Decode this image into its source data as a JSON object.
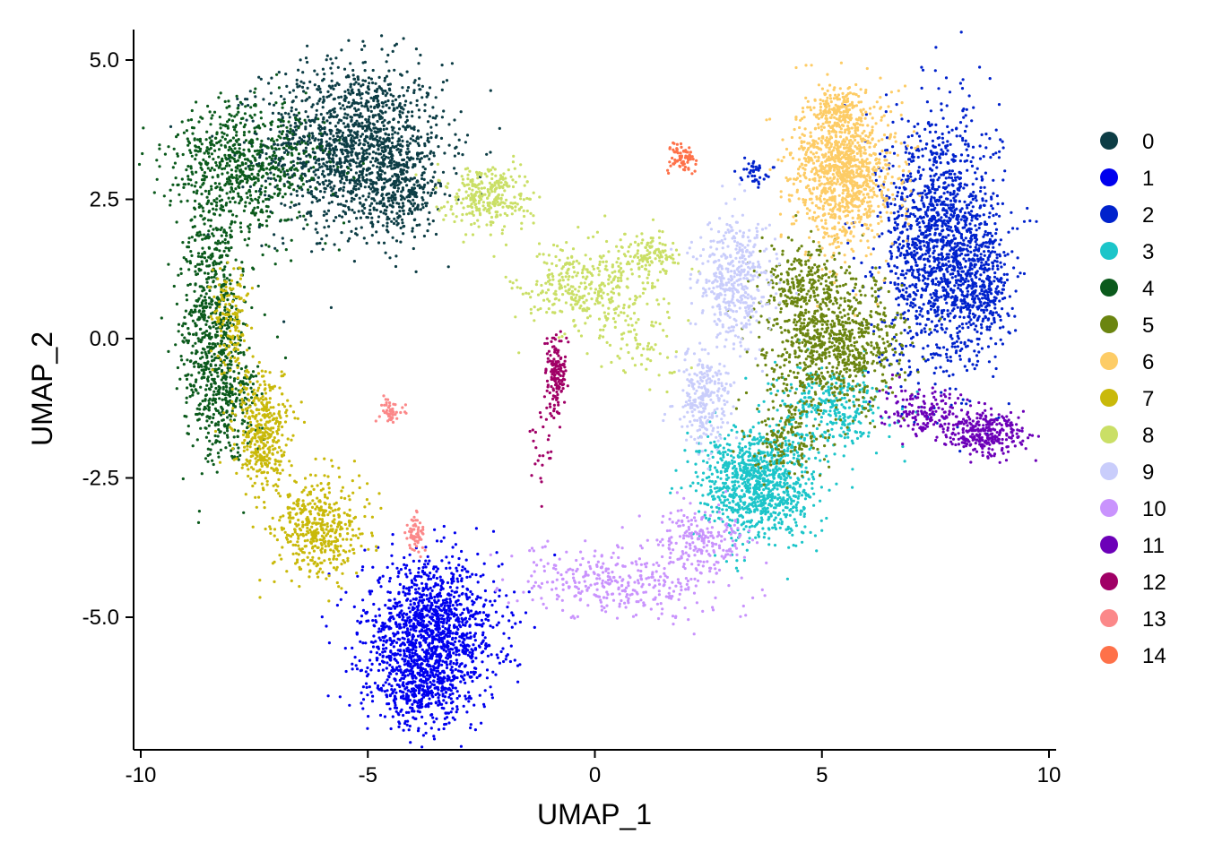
{
  "chart_data": {
    "type": "scatter",
    "title": "",
    "xlabel": "UMAP_1",
    "ylabel": "UMAP_2",
    "xlim": [
      -10,
      10
    ],
    "ylim": [
      -7.4,
      5.6
    ],
    "x_ticks": [
      -10,
      -5,
      0,
      5,
      10
    ],
    "x_tick_labels": [
      "-10",
      "-5",
      "0",
      "5",
      "10"
    ],
    "y_ticks": [
      -5,
      -2.5,
      0,
      2.5,
      5
    ],
    "y_tick_labels": [
      "-5.0",
      "-2.5",
      "0.0",
      "2.5",
      "5.0"
    ],
    "grid": false,
    "legend_position": "right",
    "point_size": "small",
    "series": [
      {
        "name": "0",
        "color": "#0d3d45",
        "clusters": [
          {
            "cx": -5.3,
            "cy": 3.45,
            "sx": 1.0,
            "sy": 0.75,
            "n": 1500
          },
          {
            "cx": -4.2,
            "cy": 2.6,
            "sx": 0.35,
            "sy": 0.4,
            "n": 200
          }
        ]
      },
      {
        "name": "1",
        "color": "#0000ee",
        "clusters": [
          {
            "cx": -3.6,
            "cy": -5.3,
            "sx": 0.75,
            "sy": 0.65,
            "n": 1400
          },
          {
            "cx": -3.9,
            "cy": -6.3,
            "sx": 0.45,
            "sy": 0.3,
            "n": 300
          }
        ]
      },
      {
        "name": "2",
        "color": "#0022cc",
        "clusters": [
          {
            "cx": 7.6,
            "cy": 1.7,
            "sx": 0.65,
            "sy": 1.15,
            "n": 1500
          },
          {
            "cx": 8.5,
            "cy": 1.0,
            "sx": 0.35,
            "sy": 0.6,
            "n": 300
          },
          {
            "cx": 3.5,
            "cy": 3.0,
            "sx": 0.15,
            "sy": 0.1,
            "n": 40
          }
        ]
      },
      {
        "name": "3",
        "color": "#1cc5c9",
        "clusters": [
          {
            "cx": 3.6,
            "cy": -2.6,
            "sx": 0.65,
            "sy": 0.5,
            "n": 1000
          },
          {
            "cx": 5.2,
            "cy": -1.2,
            "sx": 0.6,
            "sy": 0.35,
            "n": 300
          }
        ]
      },
      {
        "name": "4",
        "color": "#0b5a1c",
        "clusters": [
          {
            "cx": -8.4,
            "cy": 0.3,
            "sx": 0.35,
            "sy": 1.1,
            "n": 700
          },
          {
            "cx": -7.7,
            "cy": 3.1,
            "sx": 0.85,
            "sy": 0.6,
            "n": 700
          },
          {
            "cx": -8.1,
            "cy": -1.2,
            "sx": 0.4,
            "sy": 0.5,
            "n": 200
          }
        ]
      },
      {
        "name": "5",
        "color": "#6b8510",
        "clusters": [
          {
            "cx": 5.3,
            "cy": -0.1,
            "sx": 0.75,
            "sy": 0.6,
            "n": 900
          },
          {
            "cx": 4.5,
            "cy": 1.0,
            "sx": 0.4,
            "sy": 0.35,
            "n": 200
          },
          {
            "cx": 4.3,
            "cy": -1.8,
            "sx": 0.4,
            "sy": 0.35,
            "n": 150
          }
        ]
      },
      {
        "name": "6",
        "color": "#fdcc66",
        "clusters": [
          {
            "cx": 5.5,
            "cy": 3.0,
            "sx": 0.55,
            "sy": 0.65,
            "n": 1100
          },
          {
            "cx": 5.3,
            "cy": 4.1,
            "sx": 0.3,
            "sy": 0.2,
            "n": 150
          }
        ]
      },
      {
        "name": "7",
        "color": "#c9b90a",
        "clusters": [
          {
            "cx": -7.3,
            "cy": -1.7,
            "sx": 0.3,
            "sy": 0.5,
            "n": 400
          },
          {
            "cx": -6.1,
            "cy": -3.4,
            "sx": 0.5,
            "sy": 0.45,
            "n": 450
          },
          {
            "cx": -8.0,
            "cy": 0.4,
            "sx": 0.2,
            "sy": 0.5,
            "n": 150
          }
        ]
      },
      {
        "name": "8",
        "color": "#cadf66",
        "clusters": [
          {
            "cx": -2.3,
            "cy": 2.55,
            "sx": 0.45,
            "sy": 0.28,
            "n": 300
          },
          {
            "cx": -0.3,
            "cy": 0.9,
            "sx": 0.75,
            "sy": 0.4,
            "n": 350
          },
          {
            "cx": 1.2,
            "cy": 1.5,
            "sx": 0.35,
            "sy": 0.2,
            "n": 120
          },
          {
            "cx": 0.9,
            "cy": -0.1,
            "sx": 0.6,
            "sy": 0.4,
            "n": 80
          }
        ]
      },
      {
        "name": "9",
        "color": "#c9cdfb",
        "clusters": [
          {
            "cx": 3.1,
            "cy": 1.0,
            "sx": 0.4,
            "sy": 0.6,
            "n": 450
          },
          {
            "cx": 2.4,
            "cy": -1.1,
            "sx": 0.3,
            "sy": 0.45,
            "n": 250
          }
        ]
      },
      {
        "name": "10",
        "color": "#c993fd",
        "clusters": [
          {
            "cx": 0.6,
            "cy": -4.4,
            "sx": 1.2,
            "sy": 0.3,
            "n": 350
          },
          {
            "cx": 2.4,
            "cy": -3.6,
            "sx": 0.5,
            "sy": 0.3,
            "n": 200
          }
        ]
      },
      {
        "name": "11",
        "color": "#6c00b8",
        "clusters": [
          {
            "cx": 8.6,
            "cy": -1.7,
            "sx": 0.45,
            "sy": 0.18,
            "n": 300
          },
          {
            "cx": 7.2,
            "cy": -1.3,
            "sx": 0.5,
            "sy": 0.2,
            "n": 150
          }
        ]
      },
      {
        "name": "12",
        "color": "#a00066",
        "clusters": [
          {
            "cx": -0.85,
            "cy": -0.65,
            "sx": 0.1,
            "sy": 0.35,
            "n": 160
          },
          {
            "cx": -1.2,
            "cy": -2.0,
            "sx": 0.12,
            "sy": 0.4,
            "n": 25
          }
        ]
      },
      {
        "name": "13",
        "color": "#fb8889",
        "clusters": [
          {
            "cx": -4.5,
            "cy": -1.3,
            "sx": 0.12,
            "sy": 0.12,
            "n": 50
          },
          {
            "cx": -3.95,
            "cy": -3.5,
            "sx": 0.1,
            "sy": 0.2,
            "n": 60
          }
        ]
      },
      {
        "name": "14",
        "color": "#fe7149",
        "clusters": [
          {
            "cx": 1.9,
            "cy": 3.25,
            "sx": 0.18,
            "sy": 0.14,
            "n": 70
          }
        ]
      }
    ]
  }
}
